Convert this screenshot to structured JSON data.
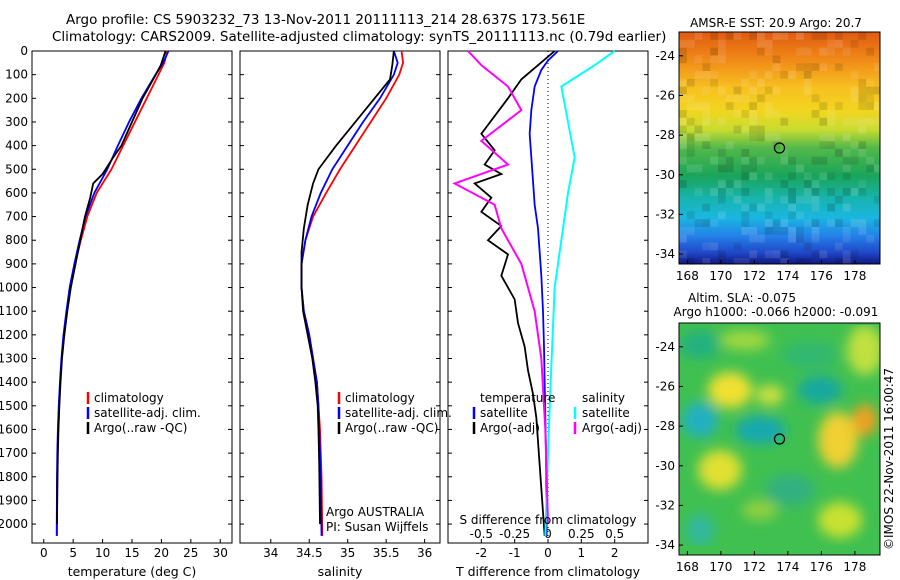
{
  "header": {
    "line1": "Argo profile: CS 5903232_73 13-Nov-2011 20111113_214 28.637S 173.561E",
    "line2": "Climatology: CARS2009. Satellite-adjusted climatology: synTS_20111113.nc (0.79d earlier)"
  },
  "colors": {
    "clim": "#ff0000",
    "sat": "#0000ff",
    "argo": "#000000",
    "sat_s": "#00ffff",
    "argo_s": "#ff00ff"
  },
  "chart_data": [
    {
      "type": "line",
      "xlabel": "temperature (deg C)",
      "ylabel": "",
      "xlim": [
        -2,
        32
      ],
      "ylim": [
        2080,
        0
      ],
      "xticks": [
        "0",
        "5",
        "10",
        "15",
        "20",
        "25",
        "30"
      ],
      "yticks": [
        "0",
        "100",
        "200",
        "300",
        "400",
        "500",
        "600",
        "700",
        "800",
        "900",
        "1000",
        "1100",
        "1200",
        "1300",
        "1400",
        "1500",
        "1600",
        "1700",
        "1800",
        "1900",
        "2000"
      ],
      "legend": [
        "climatology",
        "satellite-adj. clim.",
        "Argo(..raw -QC)"
      ],
      "legend_position": "lower-right",
      "series": [
        {
          "name": "climatology",
          "color": "clim",
          "x": [
            21.0,
            20.5,
            19.5,
            17.5,
            15.5,
            13.5,
            11.5,
            9.0,
            7.4,
            6.3,
            5.3,
            4.5,
            3.9,
            3.4,
            3.05,
            2.8,
            2.6,
            2.45,
            2.35,
            2.3,
            2.25
          ],
          "y": [
            0,
            50,
            100,
            200,
            300,
            400,
            500,
            600,
            700,
            800,
            900,
            1000,
            1100,
            1200,
            1300,
            1400,
            1500,
            1600,
            1700,
            1800,
            2050
          ]
        },
        {
          "name": "satellite-adj. clim.",
          "color": "sat",
          "x": [
            21.2,
            20.3,
            19.0,
            16.6,
            14.5,
            12.6,
            10.8,
            8.6,
            7.1,
            6.1,
            5.2,
            4.4,
            3.85,
            3.35,
            3.0,
            2.75,
            2.55,
            2.4,
            2.3,
            2.25,
            2.2
          ],
          "y": [
            0,
            50,
            100,
            200,
            300,
            400,
            500,
            600,
            700,
            800,
            900,
            1000,
            1100,
            1200,
            1300,
            1400,
            1500,
            1600,
            1700,
            1800,
            2050
          ]
        },
        {
          "name": "Argo(..raw -QC)",
          "color": "argo",
          "x": [
            20.7,
            19.9,
            18.6,
            16.8,
            15.0,
            13.2,
            11.8,
            10.0,
            8.4,
            7.9,
            7.0,
            6.2,
            5.4,
            4.6,
            4.0,
            3.5,
            3.1,
            2.85,
            2.65,
            2.5,
            2.4,
            2.3,
            2.25
          ],
          "y": [
            0,
            60,
            120,
            200,
            300,
            400,
            450,
            520,
            560,
            620,
            700,
            800,
            900,
            1000,
            1100,
            1200,
            1300,
            1400,
            1500,
            1600,
            1700,
            1850,
            2000
          ]
        }
      ]
    },
    {
      "type": "line",
      "xlabel": "salinity",
      "xlim": [
        33.6,
        36.2
      ],
      "ylim": [
        2080,
        0
      ],
      "xticks": [
        "34",
        "34.5",
        "35",
        "35.5",
        "36"
      ],
      "legend": [
        "climatology",
        "satellite-adj. clim.",
        "Argo(..raw -QC)"
      ],
      "legend_position": "lower-right",
      "annotation": [
        "Argo AUSTRALIA",
        "PI: Susan Wijffels"
      ],
      "series": [
        {
          "name": "climatology",
          "color": "clim",
          "x": [
            35.7,
            35.72,
            35.67,
            35.5,
            35.3,
            35.1,
            34.9,
            34.72,
            34.55,
            34.45,
            34.4,
            34.4,
            34.43,
            34.5,
            34.55,
            34.6,
            34.62,
            34.64,
            34.65,
            34.66,
            34.67
          ],
          "y": [
            0,
            50,
            100,
            200,
            300,
            400,
            500,
            600,
            700,
            800,
            900,
            1000,
            1100,
            1200,
            1300,
            1400,
            1500,
            1600,
            1700,
            1800,
            2050
          ]
        },
        {
          "name": "satellite-adj. clim.",
          "color": "sat",
          "x": [
            35.6,
            35.65,
            35.6,
            35.42,
            35.2,
            35.0,
            34.8,
            34.65,
            34.53,
            34.45,
            34.4,
            34.4,
            34.43,
            34.5,
            34.55,
            34.6,
            34.62,
            34.63,
            34.64,
            34.65,
            34.66
          ],
          "y": [
            0,
            50,
            100,
            200,
            300,
            400,
            500,
            600,
            700,
            800,
            900,
            1000,
            1100,
            1200,
            1300,
            1400,
            1500,
            1600,
            1700,
            1800,
            2050
          ]
        },
        {
          "name": "Argo(..raw -QC)",
          "color": "argo",
          "x": [
            35.6,
            35.58,
            35.55,
            35.35,
            35.1,
            34.85,
            34.62,
            34.55,
            34.48,
            34.43,
            34.4,
            34.4,
            34.42,
            34.48,
            34.54,
            34.58,
            34.61,
            34.62,
            34.63,
            34.64
          ],
          "y": [
            0,
            60,
            120,
            200,
            300,
            400,
            500,
            560,
            650,
            750,
            850,
            1000,
            1100,
            1200,
            1300,
            1400,
            1500,
            1600,
            1750,
            2000
          ]
        }
      ]
    },
    {
      "type": "line",
      "xlabel": "T difference from climatology",
      "xlabel2": "S difference from climatology",
      "xlim": [
        -3,
        3
      ],
      "ylim": [
        2080,
        0
      ],
      "xticks": [
        "-2",
        "-1",
        "0",
        "1",
        "2"
      ],
      "xticks2": [
        "-0.5",
        "-0.25",
        "0",
        "0.25",
        "0.5"
      ],
      "legend_left": [
        "temperature",
        "satellite",
        "Argo(-adj)"
      ],
      "legend_right": [
        "salinity",
        "satellite",
        "Argo(-adj)"
      ],
      "series": [
        {
          "name": "satellite",
          "color": "sat",
          "x": [
            0.3,
            0.0,
            -0.2,
            -0.4,
            -0.5,
            -0.55,
            -0.5,
            -0.45,
            -0.4,
            -0.3,
            -0.25,
            -0.2,
            -0.15,
            -0.12,
            -0.1,
            -0.08,
            -0.06,
            -0.05,
            -0.04
          ],
          "y": [
            0,
            40,
            80,
            150,
            250,
            350,
            450,
            550,
            650,
            750,
            850,
            950,
            1100,
            1250,
            1400,
            1550,
            1700,
            1850,
            2050
          ]
        },
        {
          "name": "Argo(-adj)",
          "color": "argo",
          "x": [
            0.2,
            -0.3,
            -0.8,
            -1.2,
            -2.0,
            -1.6,
            -1.9,
            -1.4,
            -2.2,
            -1.7,
            -2.0,
            -1.4,
            -1.8,
            -1.2,
            -1.4,
            -1.0,
            -0.9,
            -0.7,
            -0.6,
            -0.45,
            -0.35,
            -0.3,
            -0.25,
            -0.2,
            -0.15,
            -0.1
          ],
          "y": [
            0,
            60,
            120,
            200,
            350,
            420,
            480,
            520,
            560,
            620,
            680,
            740,
            800,
            860,
            950,
            1050,
            1150,
            1250,
            1350,
            1450,
            1550,
            1650,
            1750,
            1850,
            1950,
            2050
          ]
        },
        {
          "name": "satellite",
          "color": "sat_s",
          "x": [
            0.5,
            0.35,
            0.1,
            0.15,
            0.2,
            0.15,
            0.1,
            0.05,
            0.02,
            0.0,
            -0.02
          ],
          "y": [
            0,
            60,
            150,
            300,
            450,
            600,
            800,
            1000,
            1400,
            1700,
            2050
          ]
        },
        {
          "name": "Argo(-adj)",
          "color": "argo_s",
          "x": [
            -0.6,
            -0.5,
            -0.3,
            -0.2,
            -0.5,
            -0.3,
            -0.7,
            -0.4,
            -0.35,
            -0.2,
            -0.1,
            -0.05,
            -0.02,
            0.0
          ],
          "y": [
            0,
            60,
            150,
            250,
            380,
            480,
            560,
            650,
            750,
            900,
            1100,
            1300,
            1600,
            2000
          ]
        }
      ]
    },
    {
      "type": "heatmap",
      "title": "AMSR-E SST: 20.9 Argo: 20.7",
      "xticks": [
        "168",
        "170",
        "172",
        "174",
        "176",
        "178"
      ],
      "yticks": [
        "-24",
        "-26",
        "-28",
        "-30",
        "-32",
        "-34"
      ],
      "xlim": [
        167.5,
        179.5
      ],
      "ylim": [
        -34.5,
        -22.8
      ],
      "marker": {
        "x": 173.5,
        "y": -28.65
      }
    },
    {
      "type": "heatmap",
      "title": "Altim. SLA: -0.075",
      "subtitle": "Argo h1000: -0.066 h2000: -0.091",
      "xticks": [
        "168",
        "170",
        "172",
        "174",
        "176",
        "178"
      ],
      "yticks": [
        "-24",
        "-26",
        "-28",
        "-30",
        "-32",
        "-34"
      ],
      "xlim": [
        167.5,
        179.5
      ],
      "ylim": [
        -34.5,
        -22.8
      ],
      "marker": {
        "x": 173.5,
        "y": -28.65
      }
    }
  ],
  "credit": "©IMOS 22-Nov-2011 16:00:47"
}
